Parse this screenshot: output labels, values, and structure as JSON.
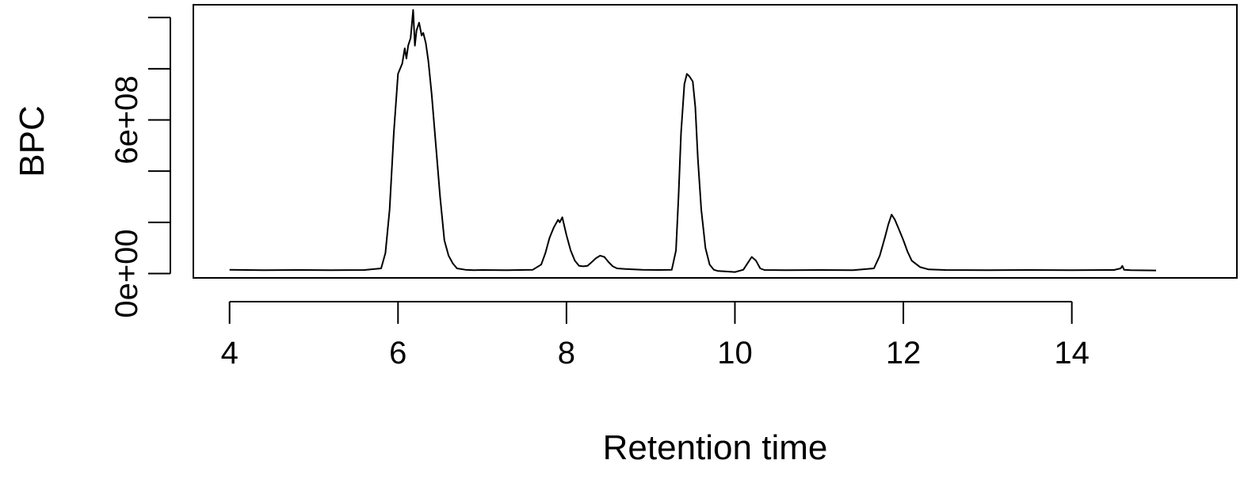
{
  "chart_data": {
    "type": "line",
    "title": "",
    "xlabel": "Retention time",
    "ylabel": "BPC",
    "xlim": [
      3.57,
      15.96
    ],
    "ylim": [
      -17000000.0,
      1050000000.0
    ],
    "x_ticks": [
      4,
      6,
      8,
      10,
      12,
      14
    ],
    "x_tick_labels": [
      "4",
      "6",
      "8",
      "10",
      "12",
      "14"
    ],
    "y_ticks": [
      0,
      200000000.0,
      400000000.0,
      600000000.0,
      800000000.0,
      1000000000.0
    ],
    "y_tick_labels": [
      "0e+00",
      "",
      "",
      "6e+08",
      "",
      ""
    ],
    "grid": false,
    "legend": "none",
    "line_color": "#000000",
    "series": [
      {
        "x": [
          4.0,
          4.4,
          4.8,
          5.2,
          5.6,
          5.8,
          5.85,
          5.9,
          5.95,
          6.0,
          6.05,
          6.08,
          6.1,
          6.12,
          6.15,
          6.18,
          6.2,
          6.22,
          6.25,
          6.28,
          6.3,
          6.33,
          6.36,
          6.4,
          6.45,
          6.5,
          6.55,
          6.6,
          6.65,
          6.7,
          6.8,
          6.9,
          7.0,
          7.3,
          7.6,
          7.7,
          7.75,
          7.8,
          7.85,
          7.9,
          7.92,
          7.95,
          8.0,
          8.05,
          8.1,
          8.15,
          8.2,
          8.25,
          8.3,
          8.35,
          8.4,
          8.45,
          8.5,
          8.55,
          8.6,
          8.7,
          8.9,
          9.1,
          9.25,
          9.3,
          9.33,
          9.36,
          9.4,
          9.43,
          9.46,
          9.5,
          9.53,
          9.56,
          9.6,
          9.65,
          9.7,
          9.75,
          9.8,
          9.9,
          10.0,
          10.1,
          10.15,
          10.2,
          10.25,
          10.3,
          10.35,
          10.6,
          11.0,
          11.4,
          11.65,
          11.72,
          11.78,
          11.82,
          11.86,
          11.9,
          11.95,
          12.0,
          12.05,
          12.1,
          12.2,
          12.3,
          12.5,
          13.0,
          13.5,
          14.0,
          14.5,
          14.58,
          14.6,
          14.62,
          14.7,
          15.0
        ],
        "y": [
          15000000.0,
          13000000.0,
          14000000.0,
          13000000.0,
          14000000.0,
          20000000.0,
          80000000.0,
          250000000.0,
          550000000.0,
          780000000.0,
          820000000.0,
          880000000.0,
          840000000.0,
          890000000.0,
          920000000.0,
          1030000000.0,
          890000000.0,
          950000000.0,
          980000000.0,
          930000000.0,
          940000000.0,
          900000000.0,
          830000000.0,
          700000000.0,
          500000000.0,
          300000000.0,
          130000000.0,
          70000000.0,
          40000000.0,
          20000000.0,
          15000000.0,
          13000000.0,
          14000000.0,
          13000000.0,
          15000000.0,
          35000000.0,
          80000000.0,
          140000000.0,
          180000000.0,
          210000000.0,
          200000000.0,
          220000000.0,
          150000000.0,
          90000000.0,
          50000000.0,
          30000000.0,
          28000000.0,
          30000000.0,
          45000000.0,
          60000000.0,
          70000000.0,
          65000000.0,
          45000000.0,
          28000000.0,
          20000000.0,
          18000000.0,
          15000000.0,
          14000000.0,
          15000000.0,
          90000000.0,
          300000000.0,
          550000000.0,
          740000000.0,
          780000000.0,
          770000000.0,
          750000000.0,
          650000000.0,
          450000000.0,
          250000000.0,
          100000000.0,
          35000000.0,
          15000000.0,
          10000000.0,
          8000000.0,
          6000000.0,
          15000000.0,
          40000000.0,
          65000000.0,
          50000000.0,
          20000000.0,
          14000000.0,
          13000000.0,
          14000000.0,
          13000000.0,
          20000000.0,
          70000000.0,
          140000000.0,
          190000000.0,
          230000000.0,
          210000000.0,
          170000000.0,
          130000000.0,
          85000000.0,
          50000000.0,
          25000000.0,
          16000000.0,
          14000000.0,
          13000000.0,
          14000000.0,
          13000000.0,
          14000000.0,
          20000000.0,
          30000000.0,
          15000000.0,
          13000000.0,
          12000000.0
        ]
      }
    ]
  }
}
